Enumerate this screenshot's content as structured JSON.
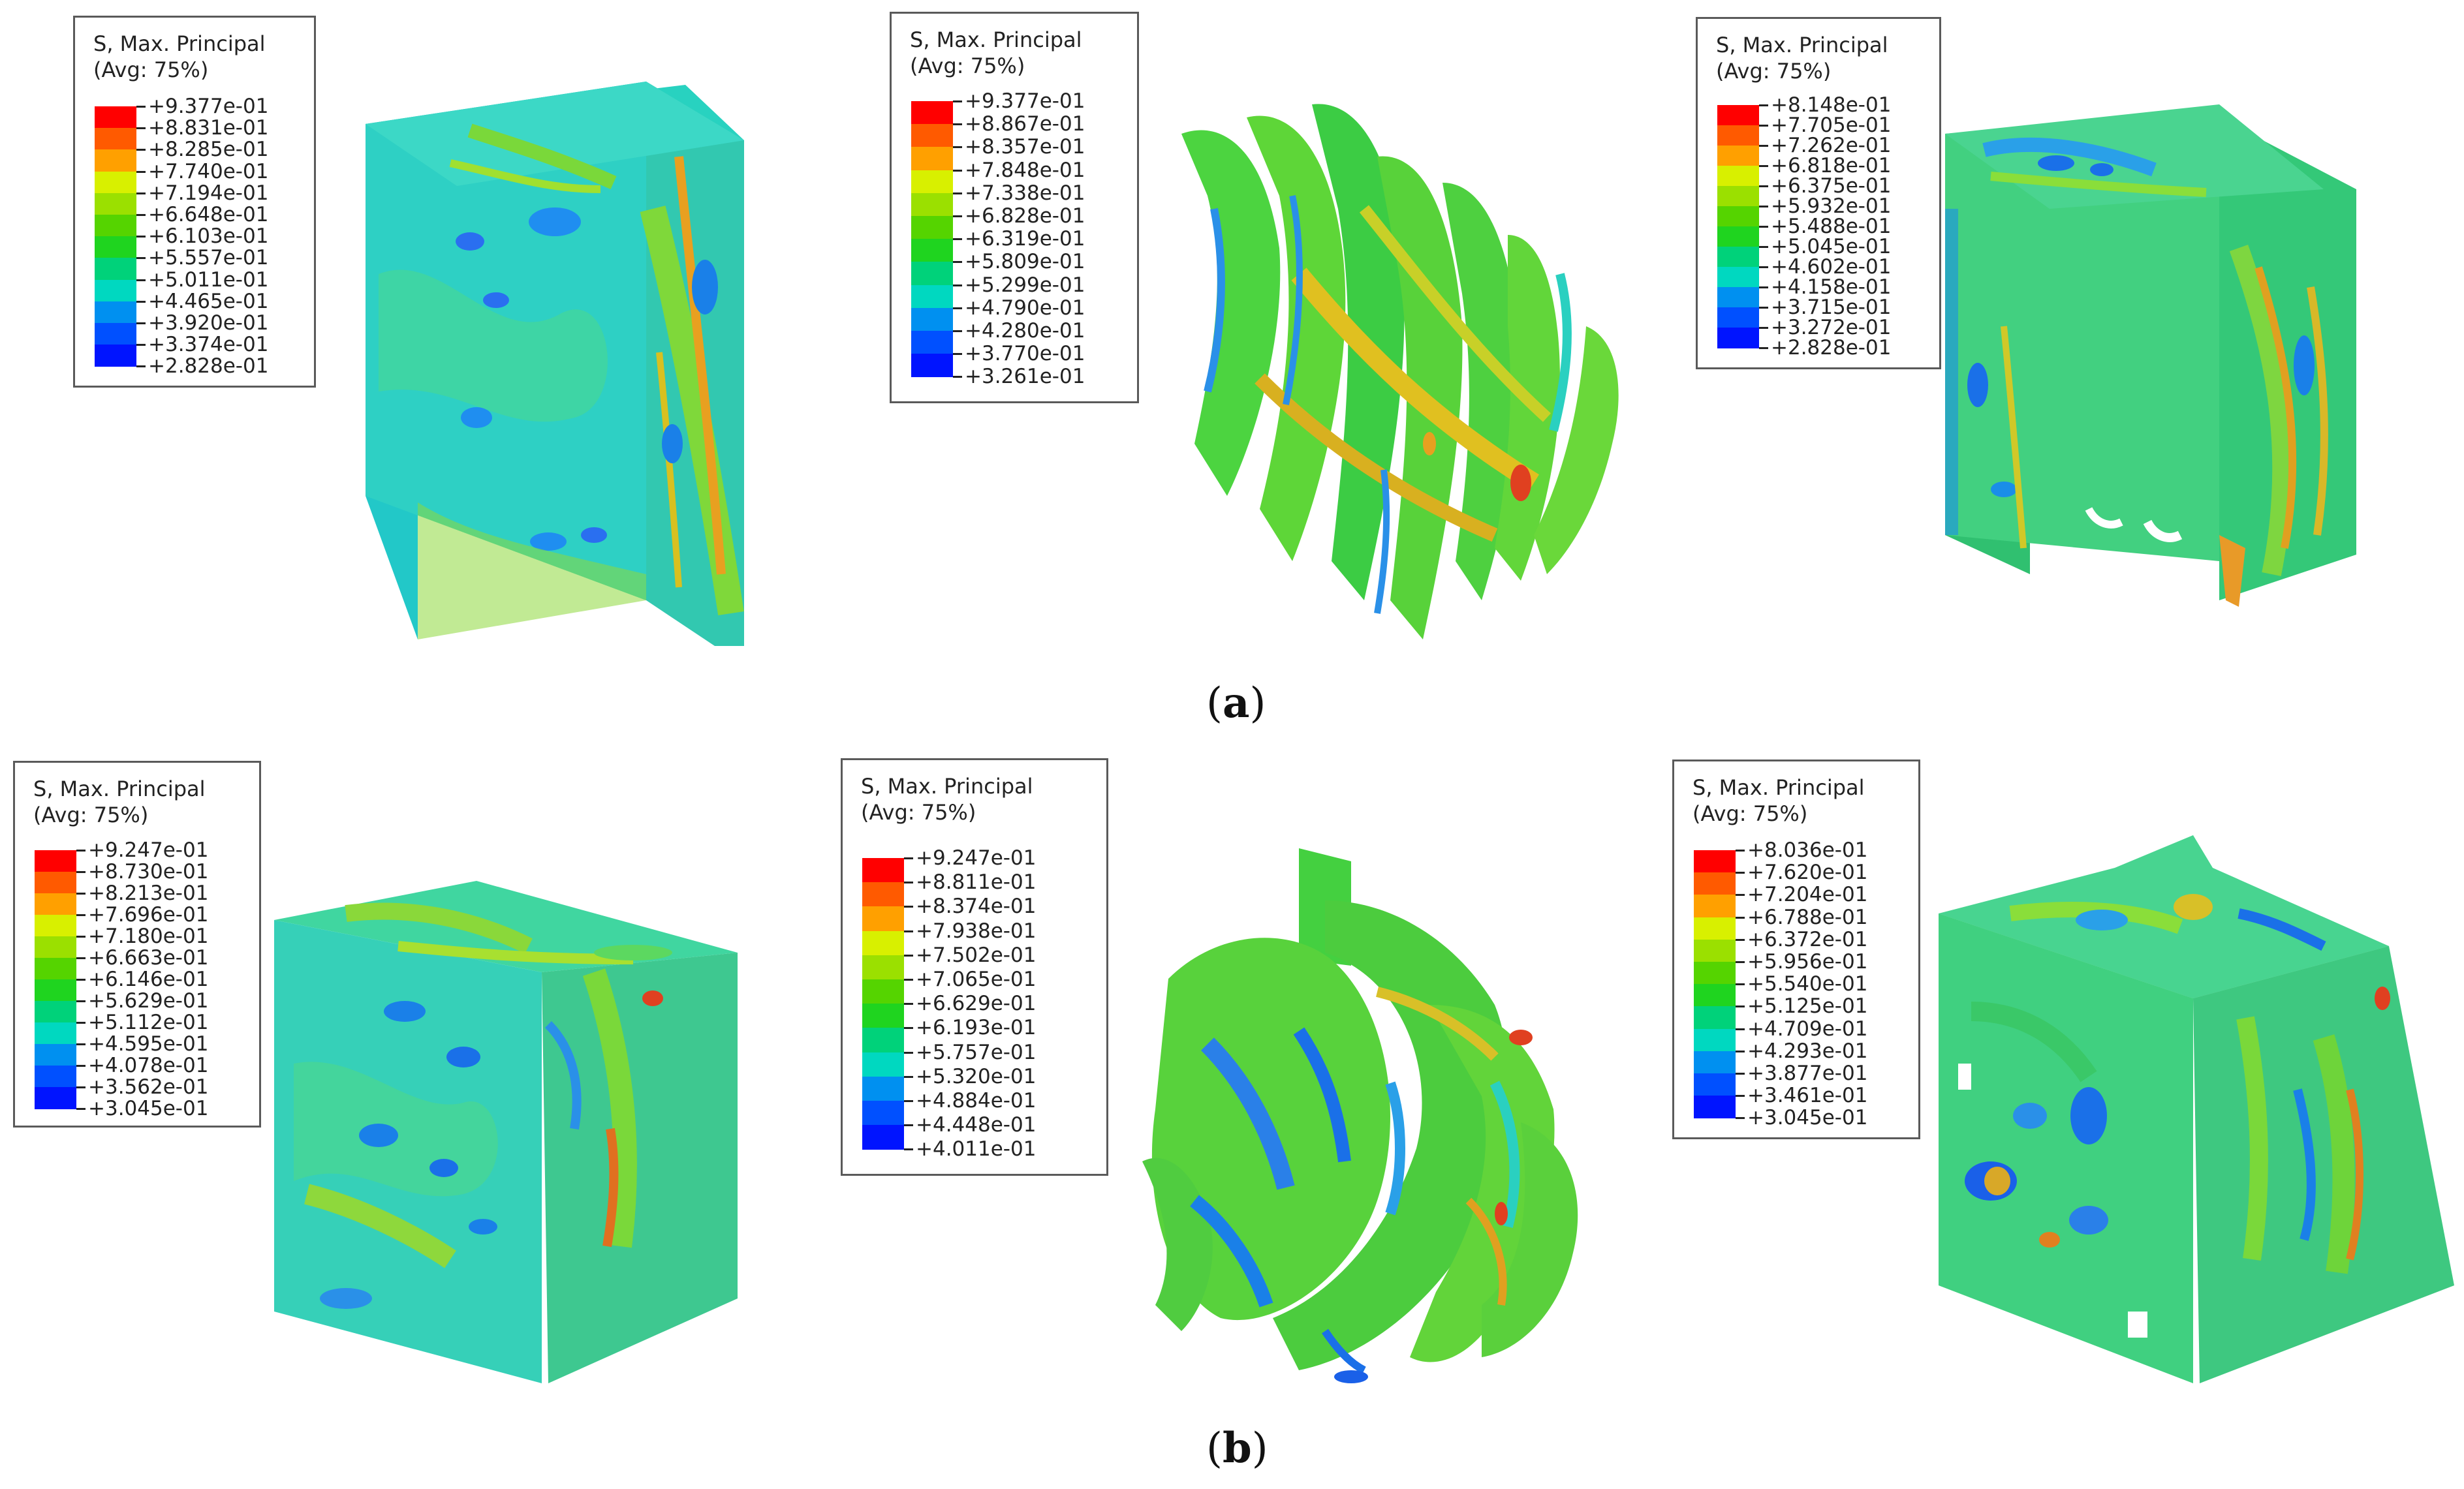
{
  "figure": {
    "legend_colors": [
      "#ff0000",
      "#ff5a00",
      "#ffa000",
      "#ffd200",
      "#d8f000",
      "#9be000",
      "#55d400",
      "#1fd41f",
      "#00d27a",
      "#00d8c0",
      "#00c0e8",
      "#0090f0",
      "#0050ff",
      "#0014ff"
    ],
    "panels": [
      {
        "caption": {
          "open": "(",
          "letter": "a",
          "close": ")"
        },
        "legends": [
          {
            "title": "S, Max. Principal",
            "subtitle": "(Avg: 75%)",
            "values": [
              "+9.377e-01",
              "+8.831e-01",
              "+8.285e-01",
              "+7.740e-01",
              "+7.194e-01",
              "+6.648e-01",
              "+6.103e-01",
              "+5.557e-01",
              "+5.011e-01",
              "+4.465e-01",
              "+3.920e-01",
              "+3.374e-01",
              "+2.828e-01"
            ]
          },
          {
            "title": "S, Max. Principal",
            "subtitle": "(Avg: 75%)",
            "values": [
              "+9.377e-01",
              "+8.867e-01",
              "+8.357e-01",
              "+7.848e-01",
              "+7.338e-01",
              "+6.828e-01",
              "+6.319e-01",
              "+5.809e-01",
              "+5.299e-01",
              "+4.790e-01",
              "+4.280e-01",
              "+3.770e-01",
              "+3.261e-01"
            ]
          },
          {
            "title": "S, Max. Principal",
            "subtitle": "(Avg: 75%)",
            "values": [
              "+8.148e-01",
              "+7.705e-01",
              "+7.262e-01",
              "+6.818e-01",
              "+6.375e-01",
              "+5.932e-01",
              "+5.488e-01",
              "+5.045e-01",
              "+4.602e-01",
              "+4.158e-01",
              "+3.715e-01",
              "+3.272e-01",
              "+2.828e-01"
            ]
          }
        ]
      },
      {
        "caption": {
          "open": "(",
          "letter": "b",
          "close": ")"
        },
        "legends": [
          {
            "title": "S, Max. Principal",
            "subtitle": "(Avg: 75%)",
            "values": [
              "+9.247e-01",
              "+8.730e-01",
              "+8.213e-01",
              "+7.696e-01",
              "+7.180e-01",
              "+6.663e-01",
              "+6.146e-01",
              "+5.629e-01",
              "+5.112e-01",
              "+4.595e-01",
              "+4.078e-01",
              "+3.562e-01",
              "+3.045e-01"
            ]
          },
          {
            "title": "S, Max. Principal",
            "subtitle": "(Avg: 75%)",
            "values": [
              "+9.247e-01",
              "+8.811e-01",
              "+8.374e-01",
              "+7.938e-01",
              "+7.502e-01",
              "+7.065e-01",
              "+6.629e-01",
              "+6.193e-01",
              "+5.757e-01",
              "+5.320e-01",
              "+4.884e-01",
              "+4.448e-01",
              "+4.011e-01"
            ]
          },
          {
            "title": "S, Max. Principal",
            "subtitle": "(Avg: 75%)",
            "values": [
              "+8.036e-01",
              "+7.620e-01",
              "+7.204e-01",
              "+6.788e-01",
              "+6.372e-01",
              "+5.956e-01",
              "+5.540e-01",
              "+5.125e-01",
              "+4.709e-01",
              "+4.293e-01",
              "+3.877e-01",
              "+3.461e-01",
              "+3.045e-01"
            ]
          }
        ]
      }
    ]
  }
}
